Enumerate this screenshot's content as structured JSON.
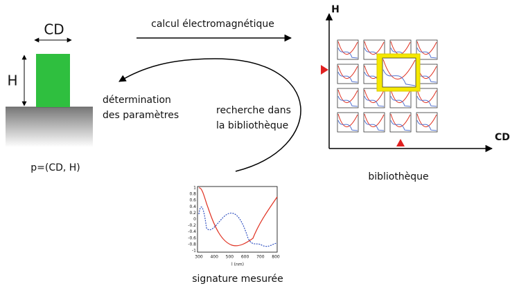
{
  "left": {
    "width_label": "CD",
    "height_label": "H",
    "param": "p=(CD, H)"
  },
  "arrows": {
    "forward": "calcul électromagnétique",
    "backward_left": [
      "détermination",
      "des paramètres"
    ],
    "backward_right": [
      "recherche dans",
      "la bibliothèque"
    ]
  },
  "library": {
    "y_axis": "H",
    "x_axis": "CD",
    "caption": "bibliothèque"
  },
  "signature": {
    "yticks": [
      "1",
      "0.8",
      "0.6",
      "0.4",
      "0.2",
      "0",
      "-0.2",
      "-0.4",
      "-0.6",
      "-0.8",
      "-1"
    ],
    "xticks": [
      "300",
      "400",
      "500",
      "600",
      "700",
      "800"
    ],
    "x_label": "l (nm)",
    "caption": "signature mesurée"
  }
}
